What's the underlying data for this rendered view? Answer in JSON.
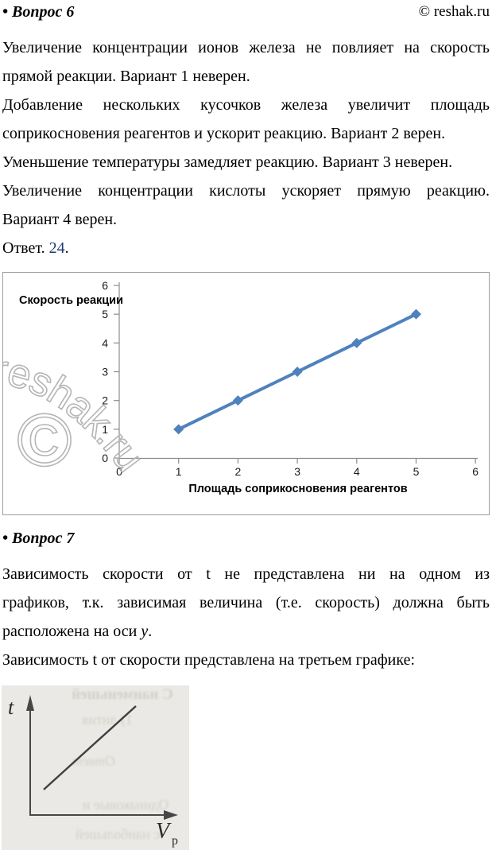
{
  "header": {
    "copyright": "© reshak.ru"
  },
  "question6": {
    "heading": "• Вопрос 6",
    "paragraphs": [
      {
        "lines": [
          "Увеличение концентрации ионов железа не повлияет на скорость"
        ],
        "last": "прямой реакции. Вариант 1 неверен."
      },
      {
        "lines": [
          "Добавление нескольких кусочков железа увеличит площадь"
        ],
        "last": "соприкосновения реагентов и ускорит реакцию. Вариант 2 верен."
      },
      {
        "lines": [],
        "last": "Уменьшение температуры замедляет реакцию. Вариант 3 неверен."
      },
      {
        "lines": [
          "Увеличение концентрации кислоты ускоряет прямую реакцию."
        ],
        "last": "Вариант 4 верен."
      }
    ],
    "answer": {
      "prefix": "Ответ. ",
      "value": "24",
      "suffix": ".",
      "value_color": "#1f3a70"
    }
  },
  "chart_data": {
    "type": "line",
    "title": "",
    "ylabel": "Скорость реакции",
    "xlabel": "Площадь соприкосновения реагентов",
    "x": [
      1,
      2,
      3,
      4,
      5
    ],
    "y": [
      1,
      2,
      3,
      4,
      5
    ],
    "xlim": [
      0,
      6
    ],
    "ylim": [
      0,
      6
    ],
    "xticks": [
      0,
      1,
      2,
      3,
      4,
      5,
      6
    ],
    "yticks": [
      0,
      1,
      2,
      3,
      4,
      5,
      6
    ],
    "grid": false,
    "legend": "none",
    "marker": "diamond",
    "line_color": "#4F81BD",
    "axis_color": "#8c8c8c"
  },
  "watermark": {
    "text": "reshak.ru",
    "symbol": "©",
    "color": "#b5b5b5"
  },
  "question7": {
    "heading": "• Вопрос 7",
    "para1": {
      "lines": [
        "Зависимость скорости от t не представлена ни на одном из",
        "графиков, т.к. зависимая величина (т.е. скорость) должна быть"
      ],
      "last_prefix": "расположена на оси ",
      "last_italic": "y",
      "last_suffix": "."
    },
    "para2": "Зависимость t от скорости представлена на третьем графике:"
  },
  "scan_figure": {
    "y_axis_label": "t",
    "x_axis_label": "V",
    "x_axis_label_sub": "р",
    "background": "#ebe9e5",
    "bleed_color": "#bfc1b6",
    "bleedthrough_text": [
      "С наименьшей",
      "1) лития",
      "Ответ",
      "Одинаковые и",
      "с наибольшей"
    ]
  }
}
